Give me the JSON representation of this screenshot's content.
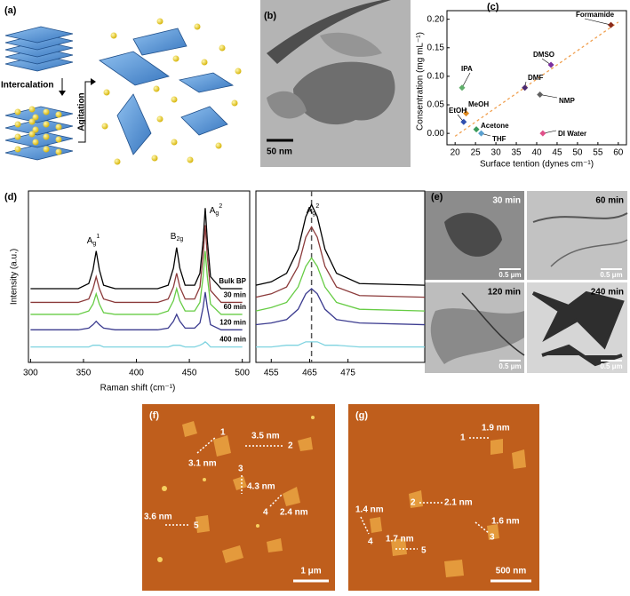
{
  "panels": {
    "a": {
      "label": "(a)",
      "step1": "Intercalation",
      "step2": "Agitation"
    },
    "b": {
      "label": "(b)",
      "scale_bar": "50 nm"
    },
    "e": {
      "label": "(e)",
      "images": [
        {
          "time": "30 min",
          "scale_bar": "0.5 μm"
        },
        {
          "time": "60 min",
          "scale_bar": "0.5 μm"
        },
        {
          "time": "120 min",
          "scale_bar": "0.5 μm"
        },
        {
          "time": "240 min",
          "scale_bar": "0.5 μm"
        }
      ]
    },
    "f": {
      "label": "(f)",
      "scale_bar": "1 μm",
      "flakes": [
        {
          "id": "1",
          "height": "3.1 nm"
        },
        {
          "id": "2",
          "height": "3.5 nm"
        },
        {
          "id": "3",
          "height": "4.3 nm"
        },
        {
          "id": "4",
          "height": "2.4 nm"
        },
        {
          "id": "5",
          "height": "3.6 nm"
        }
      ]
    },
    "g": {
      "label": "(g)",
      "scale_bar": "500 nm",
      "flakes": [
        {
          "id": "1",
          "height": "1.9 nm"
        },
        {
          "id": "2",
          "height": "2.1 nm"
        },
        {
          "id": "3",
          "height": "1.6 nm"
        },
        {
          "id": "4",
          "height": "1.4 nm"
        },
        {
          "id": "5",
          "height": "1.7 nm"
        }
      ]
    }
  },
  "chart_data": [
    {
      "type": "scatter",
      "panel_label": "(c)",
      "x_label": "Surface tention (dynes cm⁻¹)",
      "y_label": "Consentration (mg mL⁻¹)",
      "point_labels": [
        "Formamide",
        "DMSO",
        "DMF",
        "NMP",
        "IPA",
        "MeOH",
        "EtOH",
        "Acetone",
        "THF",
        "DI Water"
      ],
      "x": [
        58.2,
        43.5,
        37.1,
        40.8,
        21.7,
        22.7,
        22.1,
        25.2,
        26.4,
        41.5
      ],
      "values": [
        0.19,
        0.12,
        0.08,
        0.068,
        0.08,
        0.035,
        0.02,
        0.007,
        0.0,
        0.0
      ],
      "colors": [
        "#8b2a1a",
        "#7b2f9f",
        "#4b2a6f",
        "#606060",
        "#5fae6a",
        "#e08a20",
        "#3050b0",
        "#3a9a5a",
        "#5aa0d0",
        "#e0508a"
      ],
      "fit": {
        "x": [
          20,
          60
        ],
        "values": [
          -0.005,
          0.195
        ],
        "color": "#f0a050"
      },
      "xlim": [
        18,
        62
      ],
      "ylim": [
        -0.02,
        0.215
      ],
      "xticks": [
        20,
        25,
        30,
        35,
        40,
        45,
        50,
        55,
        60
      ],
      "yticks": [
        {
          "value": 0,
          "label": "0.00"
        },
        {
          "value": 0.05,
          "label": "0.05"
        },
        {
          "value": 0.1,
          "label": "0.10"
        },
        {
          "value": 0.15,
          "label": "0.15"
        },
        {
          "value": 0.2,
          "label": "0.20"
        }
      ]
    },
    {
      "type": "line",
      "panel_label": "(d)",
      "x_label": "Raman shift (cm⁻¹)",
      "y_label": "Intensity (a.u.)",
      "annotations": [
        {
          "base": "A",
          "sub": "g",
          "sup": "1"
        },
        {
          "base": "B",
          "sub": "2g"
        },
        {
          "base": "A",
          "sub": "g",
          "sup": "2"
        }
      ],
      "x": [
        300,
        345,
        355,
        359,
        362,
        365,
        369,
        380,
        420,
        430,
        435,
        438,
        441,
        446,
        455,
        460,
        463,
        465,
        467,
        470,
        480,
        500
      ],
      "xlim": [
        298,
        507
      ],
      "ylim": [
        0,
        10
      ],
      "xticks": [
        300,
        350,
        400,
        450,
        500
      ],
      "series": [
        {
          "name": "Bulk BP",
          "color": "#000000",
          "values": [
            4.3,
            4.3,
            4.6,
            5.4,
            6.5,
            5.4,
            4.5,
            4.3,
            4.3,
            4.5,
            5.5,
            6.7,
            5.5,
            4.5,
            4.5,
            5.2,
            7.1,
            9.0,
            7.1,
            5.0,
            4.3,
            4.3
          ]
        },
        {
          "name": "30 min",
          "color": "#8b3a3a",
          "values": [
            3.5,
            3.5,
            3.7,
            4.3,
            5.0,
            4.3,
            3.7,
            3.5,
            3.5,
            3.7,
            4.4,
            5.2,
            4.4,
            3.7,
            3.7,
            4.4,
            6.2,
            8.0,
            6.2,
            4.2,
            3.5,
            3.5
          ]
        },
        {
          "name": "60 min",
          "color": "#66cc44",
          "values": [
            2.8,
            2.8,
            3.0,
            3.4,
            4.0,
            3.4,
            2.9,
            2.8,
            2.8,
            3.0,
            3.6,
            4.3,
            3.6,
            3.0,
            3.0,
            3.5,
            5.0,
            6.5,
            5.0,
            3.4,
            2.8,
            2.8
          ]
        },
        {
          "name": "120 min",
          "color": "#3b3b8f",
          "values": [
            1.9,
            1.9,
            2.0,
            2.2,
            2.4,
            2.2,
            2.0,
            1.9,
            1.9,
            2.0,
            2.4,
            2.8,
            2.4,
            2.0,
            2.0,
            2.3,
            3.2,
            4.1,
            3.2,
            2.2,
            1.9,
            1.9
          ]
        },
        {
          "name": "400 min",
          "color": "#7fd3e0",
          "values": [
            0.9,
            0.9,
            0.9,
            1.0,
            1.0,
            1.0,
            0.9,
            0.9,
            0.9,
            0.9,
            1.0,
            1.0,
            1.0,
            0.9,
            0.9,
            1.0,
            1.1,
            1.2,
            1.1,
            0.9,
            0.9,
            0.9
          ]
        }
      ]
    },
    {
      "type": "line",
      "annotations": [
        {
          "base": "A",
          "sub": "g",
          "sup": "2"
        }
      ],
      "reference_x": 465.5,
      "x": [
        451,
        455,
        459,
        462,
        464,
        465.5,
        467,
        469,
        472,
        478,
        495
      ],
      "xlim": [
        451,
        495
      ],
      "ylim": [
        0,
        10
      ],
      "xticks": [
        455,
        465,
        475
      ],
      "series": [
        {
          "color": "#000000",
          "values": [
            4.5,
            4.7,
            5.2,
            6.6,
            8.5,
            9.2,
            8.5,
            6.6,
            5.2,
            4.6,
            4.5
          ]
        },
        {
          "color": "#8b3a3a",
          "values": [
            3.8,
            4.0,
            4.4,
            5.6,
            7.3,
            7.9,
            7.3,
            5.6,
            4.4,
            3.9,
            3.8
          ]
        },
        {
          "color": "#66cc44",
          "values": [
            3.0,
            3.2,
            3.5,
            4.4,
            5.6,
            6.1,
            5.6,
            4.4,
            3.5,
            3.1,
            3.0
          ]
        },
        {
          "color": "#3b3b8f",
          "values": [
            2.2,
            2.3,
            2.5,
            3.1,
            4.0,
            4.3,
            4.0,
            3.1,
            2.5,
            2.3,
            2.2
          ]
        },
        {
          "color": "#7fd3e0",
          "values": [
            0.9,
            0.9,
            1.0,
            1.0,
            1.2,
            1.2,
            1.2,
            1.0,
            1.0,
            0.9,
            0.9
          ]
        }
      ]
    }
  ]
}
